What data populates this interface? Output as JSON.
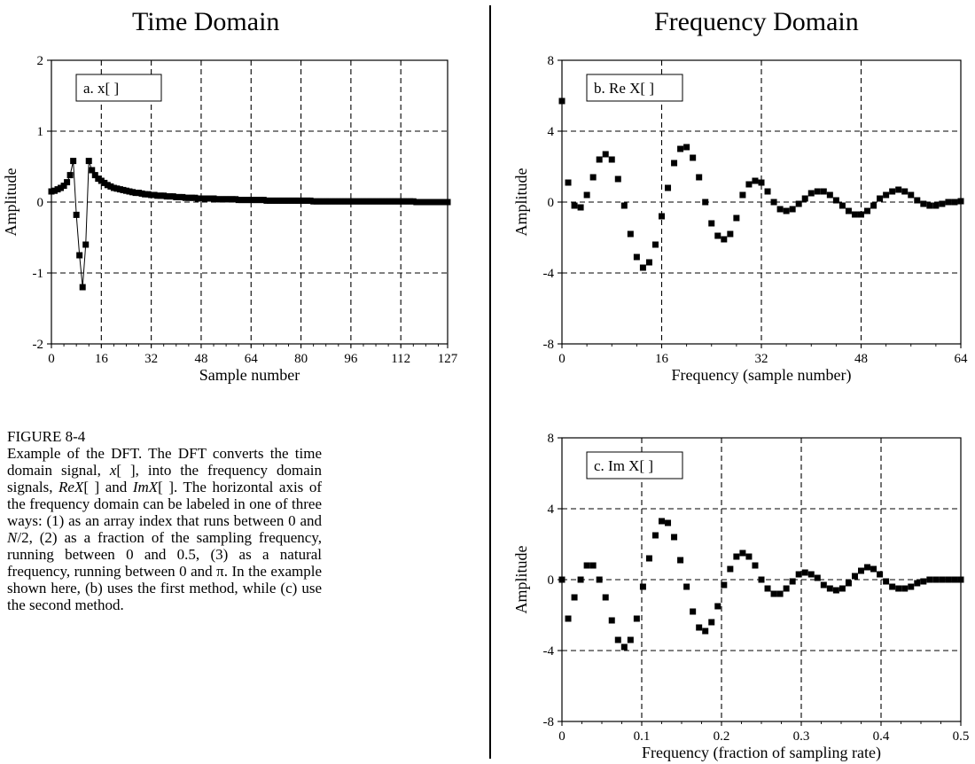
{
  "headings": {
    "time": "Time Domain",
    "frequency": "Frequency Domain"
  },
  "caption": {
    "title": "FIGURE 8-4",
    "segments": [
      "Example of the DFT. The DFT converts the time domain signal, ",
      "x",
      "[ ], into the frequency domain signals, ",
      "ReX",
      "[ ] and ",
      "ImX",
      "[ ].  The horizontal axis of the frequency domain can be labeled in one of three ways: (1) as an array index that runs between 0 and ",
      "N",
      "/2, (2) as a fraction of the sampling frequency, running between 0 and 0.5, (3) as a natural frequency, running between 0 and π.  In the example shown here, (b) uses the first method, while (c) use the second method."
    ]
  },
  "chart_data": [
    {
      "id": "a",
      "type": "line",
      "label_box": "a.  x[ ]",
      "xlabel": "Sample number",
      "ylabel": "Amplitude",
      "xlim": [
        0,
        127
      ],
      "ylim": [
        -2,
        2
      ],
      "xticks": [
        0,
        16,
        32,
        48,
        64,
        80,
        96,
        112,
        127
      ],
      "yticks": [
        -2,
        -1,
        0,
        1,
        2
      ],
      "ytick_labels": [
        "-2",
        "-1",
        "0",
        "1",
        "2"
      ],
      "grid": true,
      "markers": true,
      "y": [
        0.15,
        0.16,
        0.18,
        0.2,
        0.23,
        0.28,
        0.38,
        0.58,
        -0.18,
        -0.75,
        -1.2,
        -0.6,
        0.58,
        0.45,
        0.38,
        0.33,
        0.3,
        0.27,
        0.24,
        0.22,
        0.2,
        0.19,
        0.18,
        0.17,
        0.16,
        0.15,
        0.14,
        0.13,
        0.13,
        0.12,
        0.11,
        0.11,
        0.1,
        0.1,
        0.09,
        0.09,
        0.09,
        0.08,
        0.08,
        0.08,
        0.07,
        0.07,
        0.07,
        0.06,
        0.06,
        0.06,
        0.06,
        0.05,
        0.05,
        0.05,
        0.05,
        0.05,
        0.05,
        0.04,
        0.04,
        0.04,
        0.04,
        0.04,
        0.04,
        0.04,
        0.03,
        0.03,
        0.03,
        0.03,
        0.03,
        0.03,
        0.03,
        0.03,
        0.03,
        0.02,
        0.02,
        0.02,
        0.02,
        0.02,
        0.02,
        0.02,
        0.02,
        0.02,
        0.02,
        0.02,
        0.02,
        0.02,
        0.02,
        0.02,
        0.01,
        0.01,
        0.01,
        0.01,
        0.01,
        0.01,
        0.01,
        0.01,
        0.01,
        0.01,
        0.01,
        0.01,
        0.01,
        0.01,
        0.01,
        0.01,
        0.01,
        0.01,
        0.01,
        0.01,
        0.01,
        0.01,
        0.01,
        0.01,
        0.01,
        0.01,
        0.01,
        0.01,
        0.01,
        0.01,
        0.01,
        0.01,
        0.01,
        0.0,
        0.0,
        0.0,
        0.0,
        0.0,
        0.0,
        0.0,
        0.0,
        0.0,
        0.0,
        0.0
      ]
    },
    {
      "id": "b",
      "type": "scatter",
      "label_box": "b.  Re X[ ]",
      "xlabel": "Frequency (sample number)",
      "ylabel": "Amplitude",
      "xlim": [
        0,
        64
      ],
      "ylim": [
        -8,
        8
      ],
      "xticks": [
        0,
        16,
        32,
        48,
        64
      ],
      "yticks": [
        -8,
        -4,
        0,
        4,
        8
      ],
      "ytick_labels": [
        "-8",
        "-4",
        "0",
        "4",
        "8"
      ],
      "grid": true,
      "y": [
        5.7,
        1.1,
        -0.2,
        -0.3,
        0.4,
        1.4,
        2.4,
        2.7,
        2.4,
        1.3,
        -0.2,
        -1.8,
        -3.1,
        -3.7,
        -3.4,
        -2.4,
        -0.8,
        0.8,
        2.2,
        3.0,
        3.1,
        2.5,
        1.4,
        0.0,
        -1.2,
        -1.9,
        -2.1,
        -1.8,
        -0.9,
        0.4,
        1.0,
        1.2,
        1.1,
        0.6,
        0.0,
        -0.4,
        -0.5,
        -0.4,
        -0.1,
        0.2,
        0.5,
        0.6,
        0.6,
        0.4,
        0.1,
        -0.2,
        -0.5,
        -0.7,
        -0.7,
        -0.5,
        -0.2,
        0.2,
        0.4,
        0.6,
        0.7,
        0.6,
        0.4,
        0.1,
        -0.1,
        -0.2,
        -0.2,
        -0.1,
        0.0,
        0.0,
        0.05
      ]
    },
    {
      "id": "c",
      "type": "scatter",
      "label_box": "c.  Im X[ ]",
      "xlabel": "Frequency (fraction of sampling rate)",
      "ylabel": "Amplitude",
      "xlim": [
        0,
        0.5
      ],
      "ylim": [
        -8,
        8
      ],
      "xticks": [
        0,
        0.1,
        0.2,
        0.3,
        0.4,
        0.5
      ],
      "yticks": [
        -8,
        -4,
        0,
        4,
        8
      ],
      "ytick_labels": [
        "-8",
        "-4",
        "0",
        "4",
        "8"
      ],
      "grid": true,
      "y": [
        0.0,
        -2.2,
        -1.0,
        0.0,
        0.8,
        0.8,
        0.0,
        -1.0,
        -2.3,
        -3.4,
        -3.8,
        -3.4,
        -2.2,
        -0.4,
        1.2,
        2.5,
        3.3,
        3.2,
        2.4,
        1.1,
        -0.4,
        -1.8,
        -2.7,
        -2.9,
        -2.4,
        -1.5,
        -0.3,
        0.6,
        1.3,
        1.5,
        1.3,
        0.8,
        0.0,
        -0.5,
        -0.8,
        -0.8,
        -0.5,
        -0.1,
        0.3,
        0.4,
        0.3,
        0.1,
        -0.3,
        -0.5,
        -0.6,
        -0.5,
        -0.2,
        0.2,
        0.5,
        0.7,
        0.6,
        0.3,
        -0.1,
        -0.4,
        -0.5,
        -0.5,
        -0.4,
        -0.2,
        -0.1,
        0.0,
        0.0,
        0.0,
        0.0,
        0.0,
        0.0
      ]
    }
  ]
}
